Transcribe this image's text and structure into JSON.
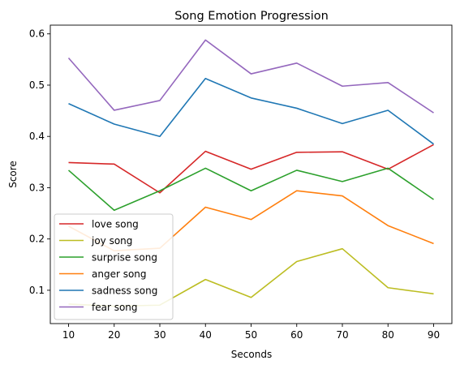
{
  "chart_data": {
    "type": "line",
    "title": "Song Emotion Progression",
    "xlabel": "Seconds",
    "ylabel": "Score",
    "x": [
      10,
      20,
      30,
      40,
      50,
      60,
      70,
      80,
      90
    ],
    "xticks": [
      "10",
      "20",
      "30",
      "40",
      "50",
      "60",
      "70",
      "80",
      "90"
    ],
    "yticks": [
      "0.1",
      "0.2",
      "0.3",
      "0.4",
      "0.5",
      "0.6"
    ],
    "xlim": [
      6,
      94
    ],
    "ylim": [
      0.035,
      0.617
    ],
    "grid": false,
    "legend_position": "lower-left",
    "series": [
      {
        "name": "love song",
        "color": "#d62728",
        "values": [
          0.349,
          0.346,
          0.29,
          0.371,
          0.336,
          0.369,
          0.37,
          0.336,
          0.384
        ]
      },
      {
        "name": "joy song",
        "color": "#bcbd22",
        "values": [
          0.073,
          0.069,
          0.071,
          0.121,
          0.086,
          0.156,
          0.181,
          0.105,
          0.093
        ]
      },
      {
        "name": "surprise song",
        "color": "#2ca02c",
        "values": [
          0.334,
          0.256,
          0.294,
          0.338,
          0.294,
          0.334,
          0.312,
          0.338,
          0.277
        ]
      },
      {
        "name": "anger song",
        "color": "#ff7f0e",
        "values": [
          0.225,
          0.177,
          0.182,
          0.262,
          0.238,
          0.294,
          0.284,
          0.226,
          0.191
        ]
      },
      {
        "name": "sadness song",
        "color": "#1f77b4",
        "values": [
          0.464,
          0.424,
          0.4,
          0.513,
          0.475,
          0.455,
          0.425,
          0.451,
          0.385
        ]
      },
      {
        "name": "fear song",
        "color": "#9467bd",
        "values": [
          0.553,
          0.451,
          0.47,
          0.588,
          0.522,
          0.543,
          0.498,
          0.505,
          0.446
        ]
      }
    ]
  }
}
